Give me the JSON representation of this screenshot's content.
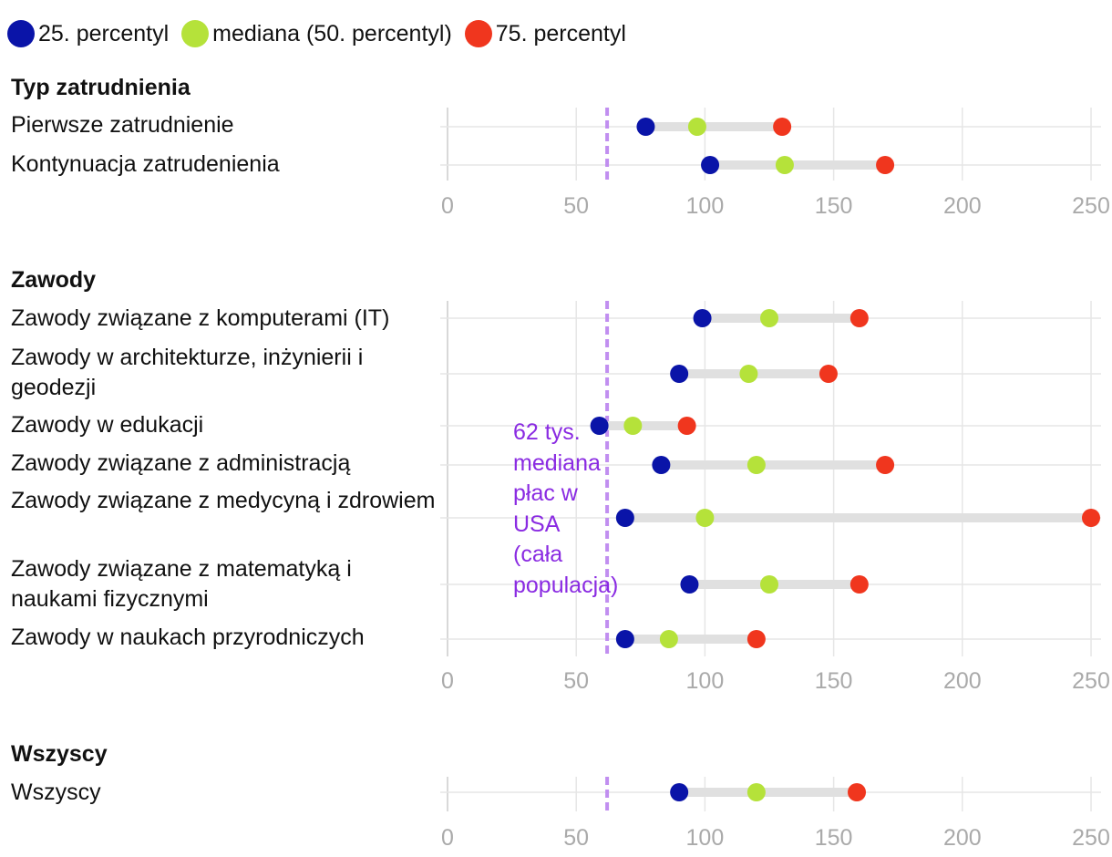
{
  "legend": [
    {
      "label": "25. percentyl",
      "color": "#0a14a8"
    },
    {
      "label": "mediana (50. percentyl)",
      "color": "#b5e23a"
    },
    {
      "label": "75. percentyl",
      "color": "#f0361e"
    }
  ],
  "annotation": {
    "text": "62 tys. mediana płac w USA (cała populacja)",
    "value": 62,
    "color": "#8a2be2",
    "line_color": "#c18ef0"
  },
  "colors": {
    "p25": "#0a14a8",
    "p50": "#b5e23a",
    "p75": "#f0361e",
    "range_bar": "#e0e0e0",
    "grid": "#e6e6e6",
    "tick_text": "#aaaaaa"
  },
  "chart_data": [
    {
      "type": "dot-range",
      "title": "Typ zatrudnienia",
      "xlim": [
        0,
        255
      ],
      "xticks": [
        0,
        50,
        100,
        150,
        200,
        250
      ],
      "categories": [
        "Pierwsze zatrudnienie",
        "Kontynuacja zatrudenienia"
      ],
      "series": [
        {
          "name": "25. percentyl",
          "values": [
            77,
            102
          ]
        },
        {
          "name": "mediana (50. percentyl)",
          "values": [
            97,
            131
          ]
        },
        {
          "name": "75. percentyl",
          "values": [
            130,
            170
          ]
        }
      ]
    },
    {
      "type": "dot-range",
      "title": "Zawody",
      "xlim": [
        0,
        255
      ],
      "xticks": [
        0,
        50,
        100,
        150,
        200,
        250
      ],
      "categories": [
        "Zawody związane z komputerami (IT)",
        "Zawody w architekturze, inżynierii i geodezji",
        "Zawody w edukacji",
        "Zawody związane z administracją",
        "Zawody związane z medycyną i zdrowiem",
        "Zawody związane z matematyką i naukami fizycznymi",
        "Zawody w naukach przyrodniczych"
      ],
      "series": [
        {
          "name": "25. percentyl",
          "values": [
            99,
            90,
            59,
            83,
            69,
            94,
            69
          ]
        },
        {
          "name": "mediana (50. percentyl)",
          "values": [
            125,
            117,
            72,
            120,
            100,
            125,
            86
          ]
        },
        {
          "name": "75. percentyl",
          "values": [
            160,
            148,
            93,
            170,
            250,
            160,
            120
          ]
        }
      ]
    },
    {
      "type": "dot-range",
      "title": "Wszyscy",
      "xlim": [
        0,
        255
      ],
      "xticks": [
        0,
        50,
        100,
        150,
        200,
        250
      ],
      "categories": [
        "Wszyscy"
      ],
      "series": [
        {
          "name": "25. percentyl",
          "values": [
            90
          ]
        },
        {
          "name": "mediana (50. percentyl)",
          "values": [
            120
          ]
        },
        {
          "name": "75. percentyl",
          "values": [
            159
          ]
        }
      ]
    }
  ]
}
